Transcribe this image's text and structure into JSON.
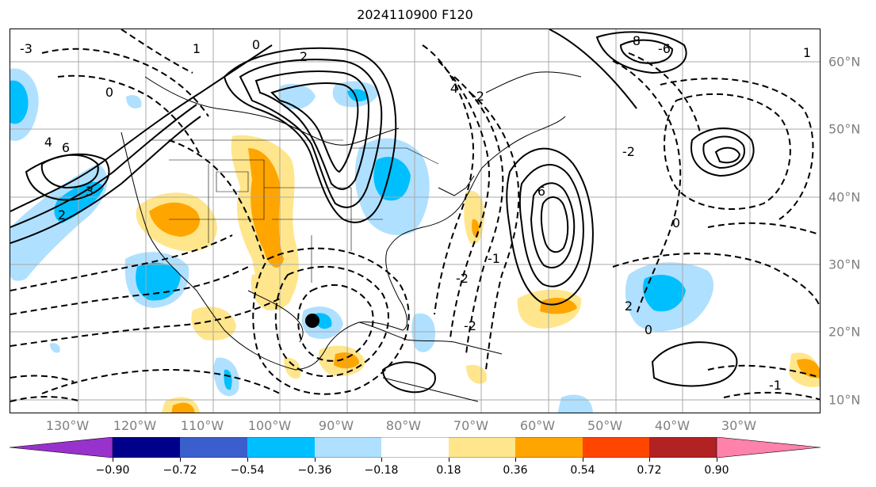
{
  "title": "2024110900 F120",
  "lon_labels": [
    "130°W",
    "120°W",
    "110°W",
    "100°W",
    "90°W",
    "80°W",
    "70°W",
    "60°W",
    "50°W",
    "40°W",
    "30°W"
  ],
  "lat_labels": [
    "60°N",
    "50°N",
    "40°N",
    "30°N",
    "20°N",
    "10°N"
  ],
  "colorbar": {
    "ticks": [
      "−0.90",
      "−0.72",
      "−0.54",
      "−0.36",
      "−0.18",
      "0.18",
      "0.36",
      "0.54",
      "0.72",
      "0.90"
    ],
    "colors": [
      "#9932cc",
      "#00008b",
      "#3a5fcd",
      "#00bfff",
      "#b0e0ff",
      "#ffffff",
      "#ffe68c",
      "#ffa500",
      "#ff4500",
      "#b22222",
      "#ff82ab"
    ]
  },
  "contour_labels": [
    "0",
    "2",
    "4",
    "6",
    "8",
    "-1",
    "-2",
    "-3",
    "3",
    "2",
    "0",
    "6",
    "1",
    "-1",
    "4",
    "2",
    "0",
    "-6",
    "-2",
    "0",
    "1",
    "-2",
    "-2"
  ],
  "map_legend": {
    "shading": "colorbar",
    "positive_fill": "#ffa500",
    "negative_fill": "#00bfff",
    "marker": "black-dot"
  }
}
